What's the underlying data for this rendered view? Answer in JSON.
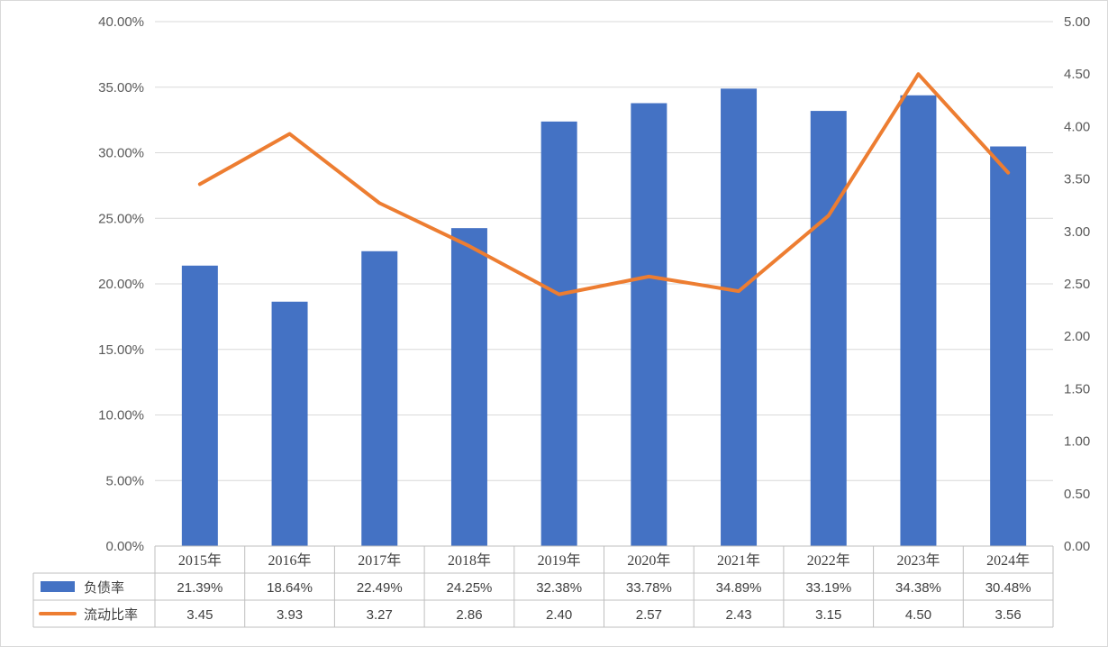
{
  "chart_data": {
    "type": "bar",
    "categories": [
      "2015年",
      "2016年",
      "2017年",
      "2018年",
      "2019年",
      "2020年",
      "2021年",
      "2022年",
      "2023年",
      "2024年"
    ],
    "series": [
      {
        "name": "负债率",
        "type": "bar",
        "axis": "left",
        "color": "#4472C4",
        "values": [
          21.39,
          18.64,
          22.49,
          24.25,
          32.38,
          33.78,
          34.89,
          33.19,
          34.38,
          30.48
        ],
        "labels": [
          "21.39%",
          "18.64%",
          "22.49%",
          "24.25%",
          "32.38%",
          "33.78%",
          "34.89%",
          "33.19%",
          "34.38%",
          "30.48%"
        ]
      },
      {
        "name": "流动比率",
        "type": "line",
        "axis": "right",
        "color": "#ED7D31",
        "values": [
          3.45,
          3.93,
          3.27,
          2.86,
          2.4,
          2.57,
          2.43,
          3.15,
          4.5,
          3.56
        ],
        "labels": [
          "3.45",
          "3.93",
          "3.27",
          "2.86",
          "2.40",
          "2.57",
          "2.43",
          "3.15",
          "4.50",
          "3.56"
        ]
      }
    ],
    "y_left": {
      "ylim": [
        0,
        40
      ],
      "ticks": [
        "0.00%",
        "5.00%",
        "10.00%",
        "15.00%",
        "20.00%",
        "25.00%",
        "30.00%",
        "35.00%",
        "40.00%"
      ]
    },
    "y_right": {
      "ylim": [
        0,
        5
      ],
      "ticks": [
        "0.00",
        "0.50",
        "1.00",
        "1.50",
        "2.00",
        "2.50",
        "3.00",
        "3.50",
        "4.00",
        "4.50",
        "5.00"
      ]
    },
    "grid": true,
    "legend": "data-table"
  }
}
